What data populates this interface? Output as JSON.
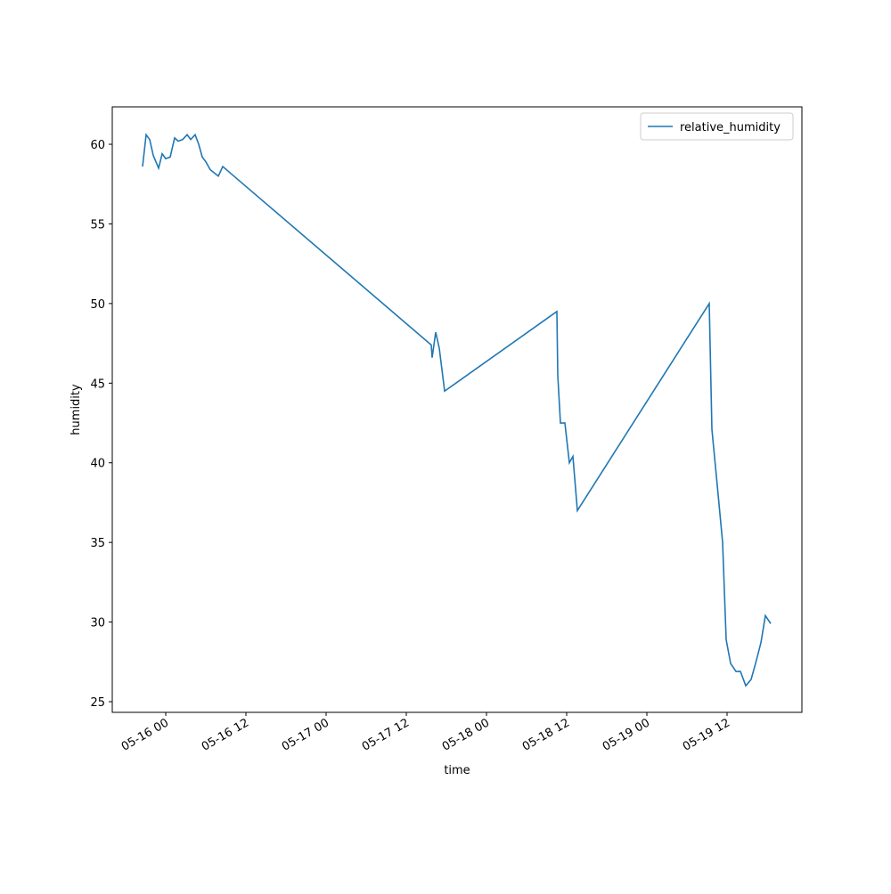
{
  "chart_data": {
    "type": "line",
    "xlabel": "time",
    "ylabel": "humidity",
    "x": [
      "05-15 20:32",
      "05-15 21:04",
      "05-15 21:36",
      "05-15 22:08",
      "05-15 22:56",
      "05-15 23:28",
      "05-16 00:00",
      "05-16 00:40",
      "05-16 01:20",
      "05-16 01:52",
      "05-16 02:32",
      "05-16 03:12",
      "05-16 03:44",
      "05-16 04:24",
      "05-16 04:56",
      "05-16 05:28",
      "05-16 06:00",
      "05-16 06:40",
      "05-16 07:52",
      "05-16 08:32",
      "05-17 15:44",
      "05-17 15:52",
      "05-17 16:24",
      "05-17 16:56",
      "05-17 17:44",
      "05-18 10:32",
      "05-18 10:40",
      "05-18 11:04",
      "05-18 11:44",
      "05-18 12:24",
      "05-18 12:56",
      "05-18 13:36",
      "05-19 09:20",
      "05-19 09:44",
      "05-19 10:40",
      "05-19 11:20",
      "05-19 11:52",
      "05-19 12:32",
      "05-19 13:20",
      "05-19 14:00",
      "05-19 14:48",
      "05-19 15:36",
      "05-19 16:16",
      "05-19 17:04",
      "05-19 17:44",
      "05-19 18:32"
    ],
    "series": [
      {
        "name": "relative_humidity",
        "color": "#1f77b4",
        "values": [
          58.6,
          60.6,
          60.3,
          59.3,
          58.5,
          59.4,
          59.1,
          59.2,
          60.4,
          60.2,
          60.3,
          60.6,
          60.3,
          60.6,
          60.0,
          59.2,
          58.9,
          58.4,
          58.0,
          58.6,
          47.4,
          46.6,
          48.2,
          47.2,
          44.5,
          49.5,
          45.5,
          42.5,
          42.5,
          40.0,
          40.4,
          37.0,
          50.0,
          42.1,
          38.0,
          35.0,
          28.9,
          27.4,
          26.9,
          26.9,
          26.0,
          26.4,
          27.4,
          28.7,
          30.4,
          29.9
        ]
      }
    ],
    "xlim": [
      "05-15 16:00",
      "05-19 23:12"
    ],
    "xticks": [
      "05-16 00",
      "05-16 12",
      "05-17 00",
      "05-17 12",
      "05-18 00",
      "05-18 12",
      "05-19 00",
      "05-19 12"
    ],
    "ylim": [
      24.33,
      62.35
    ],
    "yticks": [
      25,
      30,
      35,
      40,
      45,
      50,
      55,
      60
    ],
    "legend": "upper right"
  }
}
